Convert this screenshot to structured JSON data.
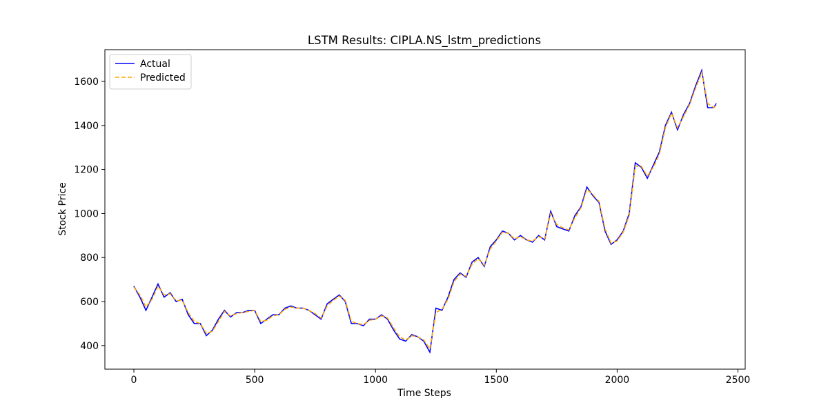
{
  "chart_data": {
    "type": "line",
    "title": "LSTM Results: CIPLA.NS_lstm_predictions",
    "x_label": "Time Steps",
    "y_label": "Stock Price",
    "x": [
      0,
      25,
      50,
      75,
      100,
      125,
      150,
      175,
      200,
      225,
      250,
      275,
      300,
      325,
      350,
      375,
      400,
      425,
      450,
      475,
      500,
      525,
      550,
      575,
      600,
      625,
      650,
      675,
      700,
      725,
      750,
      775,
      800,
      825,
      850,
      875,
      900,
      925,
      950,
      975,
      1000,
      1025,
      1050,
      1075,
      1100,
      1125,
      1150,
      1175,
      1200,
      1225,
      1250,
      1275,
      1300,
      1325,
      1350,
      1375,
      1400,
      1425,
      1450,
      1475,
      1500,
      1525,
      1550,
      1575,
      1600,
      1625,
      1650,
      1675,
      1700,
      1725,
      1750,
      1775,
      1800,
      1825,
      1850,
      1875,
      1900,
      1925,
      1950,
      1975,
      2000,
      2025,
      2050,
      2075,
      2100,
      2125,
      2150,
      2175,
      2200,
      2225,
      2250,
      2275,
      2300,
      2325,
      2350,
      2375,
      2400,
      2410
    ],
    "series": [
      {
        "name": "Actual",
        "color": "blue",
        "dash": false,
        "values": [
          670,
          620,
          560,
          620,
          680,
          620,
          640,
          600,
          610,
          540,
          500,
          500,
          445,
          470,
          520,
          560,
          530,
          550,
          550,
          560,
          560,
          500,
          520,
          540,
          540,
          570,
          580,
          570,
          570,
          560,
          540,
          520,
          590,
          610,
          630,
          600,
          500,
          500,
          490,
          520,
          520,
          540,
          520,
          470,
          430,
          420,
          450,
          440,
          420,
          370,
          570,
          560,
          620,
          700,
          730,
          710,
          780,
          800,
          760,
          850,
          880,
          920,
          910,
          880,
          900,
          880,
          870,
          900,
          880,
          1010,
          940,
          930,
          920,
          990,
          1030,
          1120,
          1080,
          1050,
          920,
          860,
          880,
          920,
          1000,
          1230,
          1210,
          1160,
          1220,
          1280,
          1400,
          1460,
          1380,
          1450,
          1500,
          1580,
          1650,
          1480,
          1480,
          1500
        ]
      },
      {
        "name": "Predicted",
        "color": "orange",
        "dash": true,
        "values": [
          665,
          630,
          575,
          610,
          670,
          630,
          635,
          605,
          605,
          550,
          510,
          500,
          455,
          465,
          510,
          555,
          535,
          545,
          550,
          555,
          560,
          510,
          515,
          535,
          540,
          565,
          575,
          570,
          570,
          560,
          545,
          525,
          580,
          605,
          625,
          605,
          510,
          500,
          495,
          515,
          520,
          535,
          525,
          480,
          440,
          425,
          445,
          440,
          425,
          385,
          550,
          565,
          610,
          690,
          725,
          715,
          770,
          795,
          765,
          840,
          875,
          915,
          910,
          885,
          895,
          880,
          875,
          895,
          885,
          1000,
          950,
          935,
          925,
          980,
          1025,
          1110,
          1085,
          1055,
          930,
          865,
          875,
          915,
          990,
          1215,
          1215,
          1170,
          1210,
          1270,
          1390,
          1455,
          1390,
          1440,
          1495,
          1570,
          1640,
          1500,
          1480,
          1495
        ]
      }
    ],
    "xlim": [
      -120,
      2530
    ],
    "ylim": [
      293,
      1744
    ],
    "xticks": [
      0,
      500,
      1000,
      1500,
      2000,
      2500
    ],
    "yticks": [
      400,
      600,
      800,
      1000,
      1200,
      1400,
      1600
    ],
    "legend": "upper left"
  }
}
